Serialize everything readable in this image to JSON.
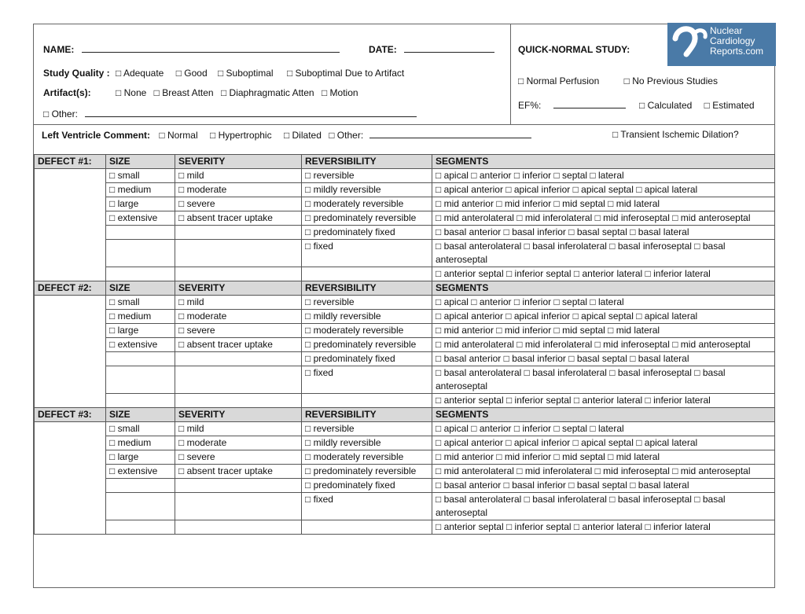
{
  "header": {
    "name_label": "NAME:",
    "date_label": "DATE:",
    "study_quality_label": "Study Quality :",
    "study_quality_options": [
      "□ Adequate",
      "□ Good",
      "□ Suboptimal",
      "□ Suboptimal Due to Artifact"
    ],
    "artifacts_label": "Artifact(s):",
    "artifact_options": [
      "□ None",
      "□ Breast Atten",
      "□ Diaphragmatic Atten",
      "□  Motion"
    ],
    "other_label": "□ Other:",
    "quick_normal_label": "QUICK-NORMAL STUDY:",
    "normal_perfusion": "□  Normal Perfusion",
    "no_previous": "□   No Previous Studies",
    "ef_label": "EF%:",
    "calculated": "□  Calculated",
    "estimated": "□ Estimated",
    "logo_text": [
      "Nuclear",
      "Cardiology",
      "Reports.com"
    ],
    "logo_color": "#4a7aa7"
  },
  "lv": {
    "label": "Left Ventricle Comment:",
    "options": [
      "□  Normal",
      "□  Hypertrophic",
      "□  Dilated",
      "□  Other:"
    ],
    "tid": "□   Transient Ischemic Dilation?"
  },
  "table": {
    "columns": [
      "SIZE",
      "SEVERITY",
      "REVERSIBILITY",
      "SEGMENTS"
    ],
    "defects": [
      "DEFECT #1:",
      "DEFECT #2:",
      "DEFECT #3:"
    ],
    "rows": [
      [
        "□ small",
        "□  mild",
        "□  reversible",
        "□  apical  □  anterior  □  inferior □  septal □  lateral"
      ],
      [
        "□  medium",
        "□  moderate",
        "□  mildly reversible",
        "□  apical anterior  □  apical inferior □  apical septal  □  apical lateral"
      ],
      [
        "□  large",
        "□  severe",
        "□  moderately reversible",
        "□  mid anterior  □  mid inferior □  mid septal  □  mid lateral"
      ],
      [
        "□  extensive",
        "□  absent tracer uptake",
        "□  predominately reversible",
        "□  mid anterolateral  □  mid inferolateral □  mid inferoseptal  □  mid anteroseptal"
      ],
      [
        "",
        "",
        "□  predominately fixed",
        "□  basal anterior  □  basal inferior □  basal septal  □  basal lateral"
      ],
      [
        "",
        "",
        "□  fixed",
        "□  basal anterolateral  □  basal inferolateral □  basal inferoseptal  □  basal anteroseptal"
      ],
      [
        "",
        "",
        "",
        "□  anterior septal  □  inferior septal  □  anterior lateral □  inferior lateral"
      ]
    ]
  }
}
